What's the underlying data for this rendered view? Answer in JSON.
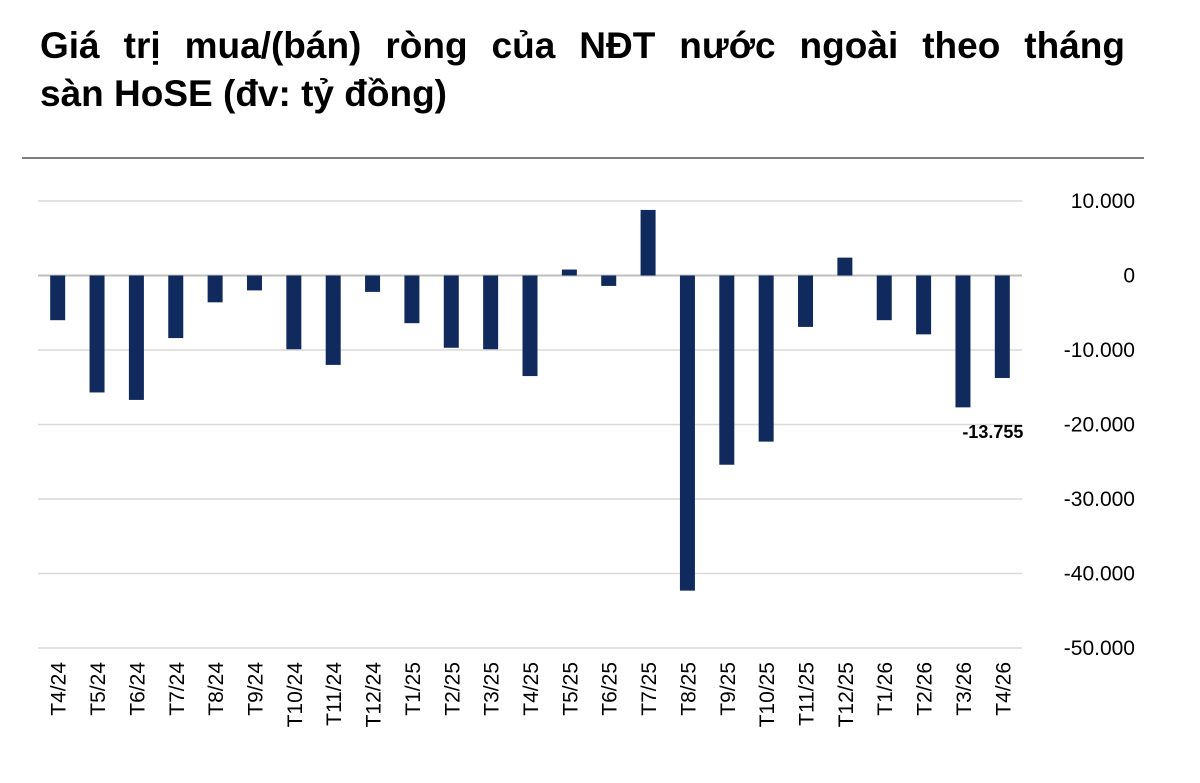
{
  "title_line1": "Giá trị mua/(bán) ròng của NĐT nước ngoài theo tháng",
  "title_line2": "sàn HoSE (đv: tỷ đồng)",
  "colors": {
    "bar": "#112a5e",
    "grid": "#d9d9d9",
    "axis": "#bfbfbf",
    "rule": "#7f7f7f"
  },
  "chart_data": {
    "type": "bar",
    "title": "Giá trị mua/(bán) ròng của NĐT nước ngoài theo tháng sàn HoSE (đv: tỷ đồng)",
    "categories": [
      "T4/24",
      "T5/24",
      "T6/24",
      "T7/24",
      "T8/24",
      "T9/24",
      "T10/24",
      "T11/24",
      "T12/24",
      "T1/25",
      "T2/25",
      "T3/25",
      "T4/25",
      "T5/25",
      "T6/25",
      "T7/25",
      "T8/25",
      "T9/25",
      "T10/25",
      "T11/25",
      "T12/25",
      "T1/26",
      "T2/26",
      "T3/26",
      "T4/26"
    ],
    "values": [
      -6000,
      -15700,
      -16700,
      -8400,
      -3600,
      -2000,
      -9900,
      -12000,
      -2200,
      -6400,
      -9700,
      -9900,
      -13500,
      800,
      -1400,
      8800,
      -42300,
      -25400,
      -22300,
      -6900,
      2400,
      -6000,
      -7900,
      -17700,
      -13755
    ],
    "ylim": [
      -50000,
      10000
    ],
    "yticks": [
      10000,
      0,
      -10000,
      -20000,
      -30000,
      -40000,
      -50000
    ],
    "ytick_labels": [
      "10.000",
      "0",
      "-10.000",
      "-20.000",
      "-30.000",
      "-40.000",
      "-50.000"
    ],
    "grid": true,
    "data_labels": [
      {
        "index": 24,
        "text": "-13.755"
      }
    ],
    "xlabel": "",
    "ylabel": ""
  }
}
